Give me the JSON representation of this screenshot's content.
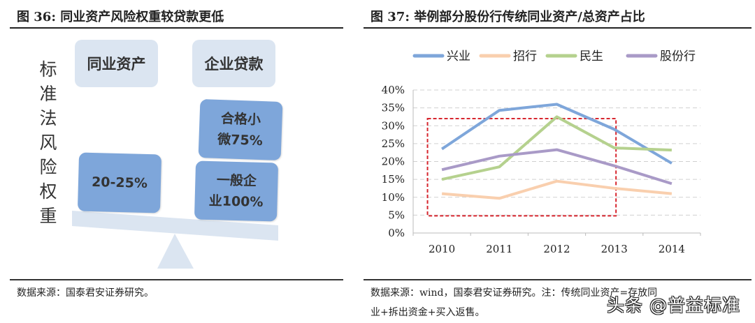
{
  "left_figure": {
    "title": "图 36:  同业资产风险权重较贷款更低",
    "vertical_label": "标准法风险权重",
    "headers": [
      "同业资产",
      "企业贷款"
    ],
    "interbank_weight": "20-25%",
    "sme_weight_line1": "合格小",
    "sme_weight_line2": "微75%",
    "corp_weight_line1": "一般企",
    "corp_weight_line2": "业100%",
    "source": "数据来源：国泰君安证券研究。",
    "colors": {
      "light_box": "#dbe5f1",
      "dark_box": "#7ea6da",
      "beam": "#dbe5f1"
    }
  },
  "right_figure": {
    "title": "图 37:  举例部分股份行传统同业资产/总资产占比",
    "source_line1": "数据来源：wind，国泰君安证券研究。注：传统同业资产=存放同",
    "source_line2": "业+拆出资金+买入返售。"
  },
  "watermark": "头条 @普益标准",
  "chart_data": {
    "type": "line",
    "categories": [
      "2010",
      "2011",
      "2012",
      "2013",
      "2014"
    ],
    "ylim": [
      0,
      40
    ],
    "yticks": [
      "0%",
      "5%",
      "10%",
      "15%",
      "20%",
      "25%",
      "30%",
      "35%",
      "40%"
    ],
    "grid": true,
    "legend_placement": "top",
    "series": [
      {
        "name": "兴业",
        "color": "#7ea6da",
        "values": [
          23.5,
          34.3,
          36.0,
          29.0,
          19.5
        ]
      },
      {
        "name": "招行",
        "color": "#f9cfae",
        "values": [
          11.0,
          9.7,
          14.5,
          12.5,
          11.0
        ]
      },
      {
        "name": "民生",
        "color": "#b5d18e",
        "values": [
          15.0,
          18.5,
          32.5,
          23.8,
          23.2
        ]
      },
      {
        "name": "股份行",
        "color": "#a99ac7",
        "values": [
          17.7,
          21.5,
          23.3,
          18.8,
          13.8
        ]
      }
    ],
    "annotation": {
      "type": "dashed-rectangle",
      "color": "#d7262f",
      "x_from": "2010",
      "x_to": "2013",
      "y_range": [
        4.8,
        32
      ]
    }
  }
}
